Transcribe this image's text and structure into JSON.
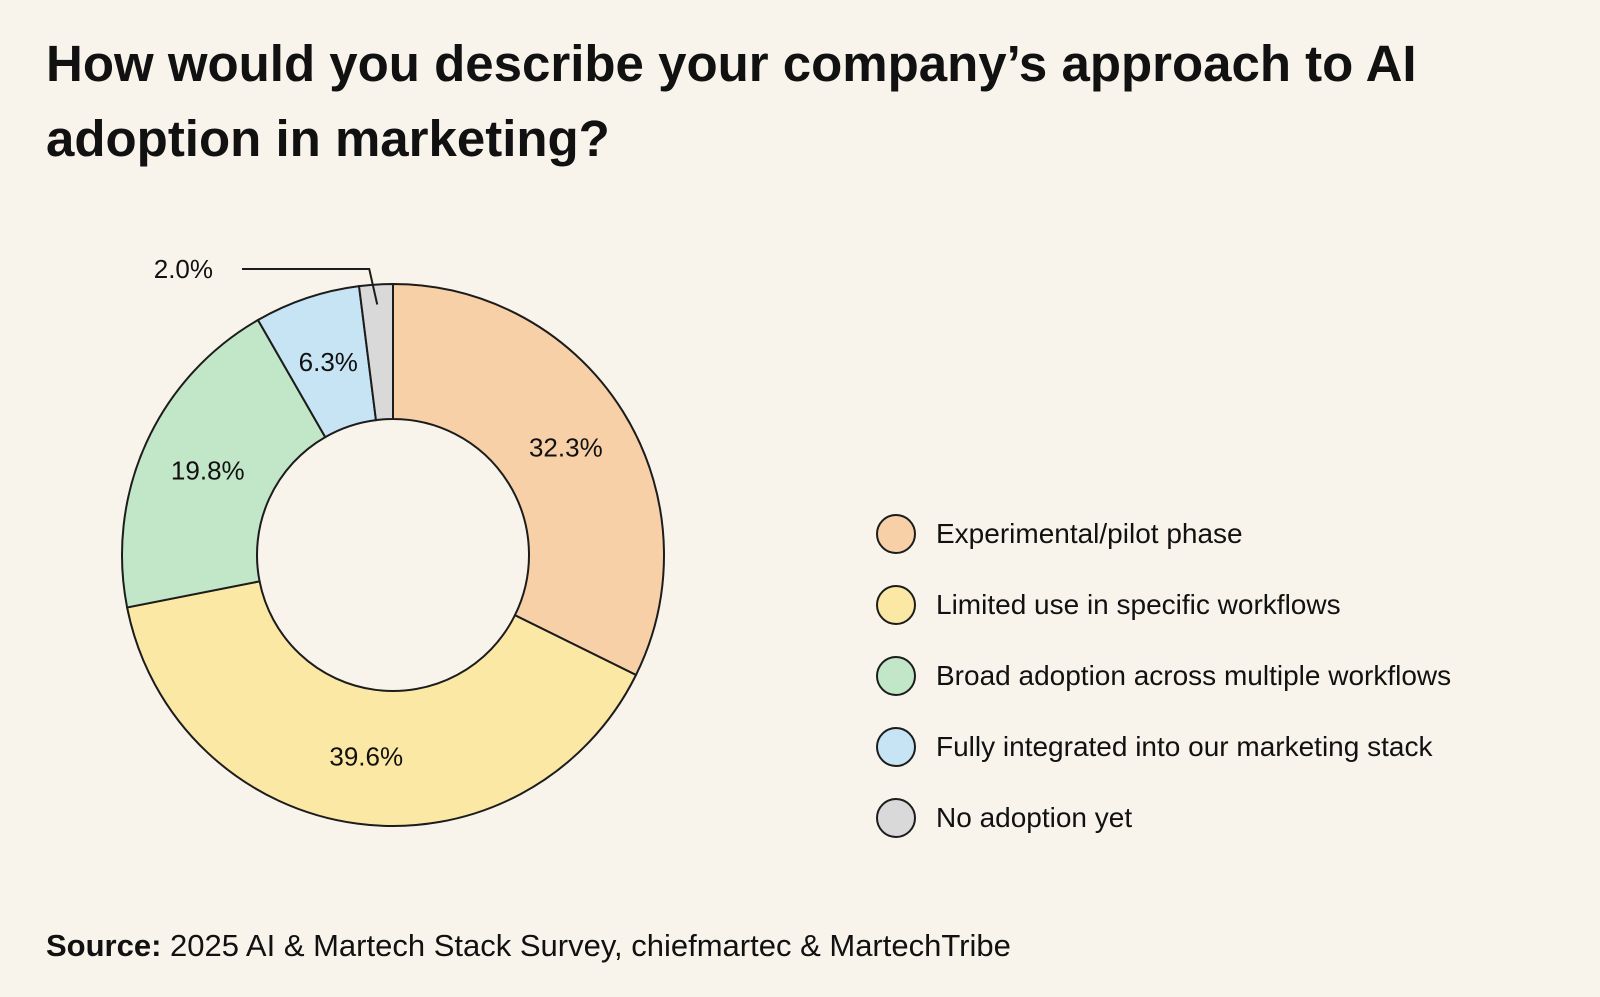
{
  "title": "How would you describe your company’s approach to AI adoption in marketing?",
  "chart_data": {
    "type": "pie",
    "subtype": "donut",
    "title": "How would you describe your company’s approach to AI adoption in marketing?",
    "unit": "%",
    "slices": [
      {
        "label": "Experimental/pilot phase",
        "value": 32.3,
        "value_label": "32.3%",
        "color": "#f7d0a8"
      },
      {
        "label": "Limited use in specific workflows",
        "value": 39.6,
        "value_label": "39.6%",
        "color": "#fbe8a4"
      },
      {
        "label": "Broad adoption across multiple workflows",
        "value": 19.8,
        "value_label": "19.8%",
        "color": "#c2e6c8"
      },
      {
        "label": "Fully integrated into our marketing stack",
        "value": 6.3,
        "value_label": "6.3%",
        "color": "#c6e4f4"
      },
      {
        "label": "No adoption yet",
        "value": 2.0,
        "value_label": "2.0%",
        "color": "#d9d9d9"
      }
    ],
    "legend_position": "right",
    "start_angle": "12 o'clock",
    "direction": "clockwise"
  },
  "source": {
    "label": "Source:",
    "text": "2025 AI & Martech Stack Survey, chiefmartec & MartechTribe"
  }
}
